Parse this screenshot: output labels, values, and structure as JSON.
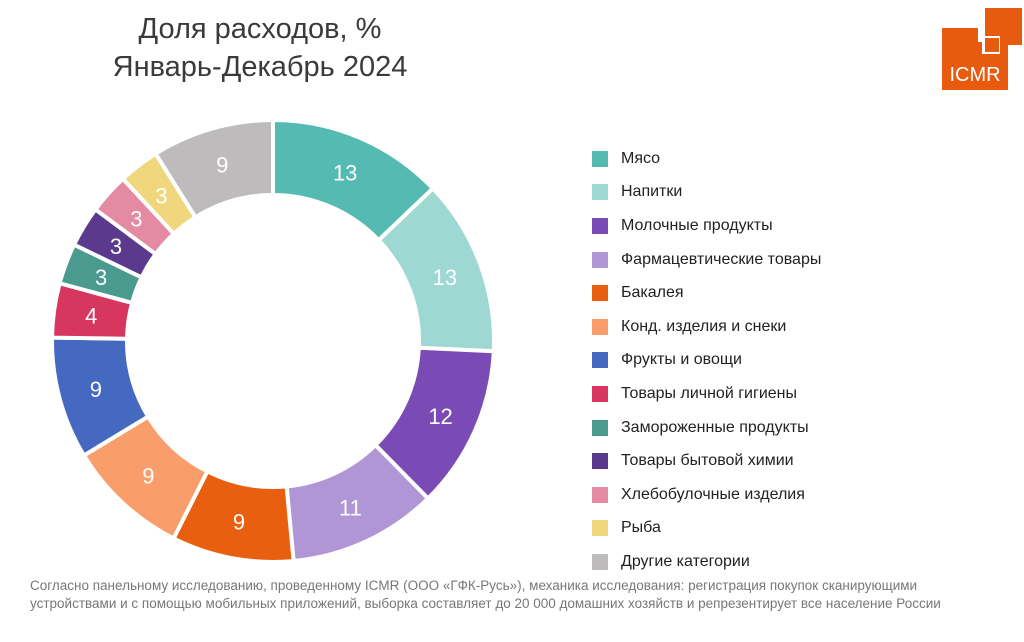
{
  "title_line1": "Доля расходов, %",
  "title_line2": "Январь-Декабрь 2024",
  "logo_text": "ICMR",
  "brand_color": "#E85A0E",
  "chart_data": {
    "type": "pie",
    "donut": true,
    "title": "Доля расходов, % Январь-Декабрь 2024",
    "legend_position": "right",
    "categories": [
      "Мясо",
      "Напитки",
      "Молочные продукты",
      "Фармацевтические товары",
      "Бакалея",
      "Конд. изделия и снеки",
      "Фрукты и овощи",
      "Товары личной гигиены",
      "Замороженные продукты",
      "Товары бытовой химии",
      "Хлебобулочные изделия",
      "Рыба",
      "Другие категории"
    ],
    "values": [
      13,
      13,
      12,
      11,
      9,
      9,
      9,
      4,
      3,
      3,
      3,
      3,
      9
    ],
    "colors": [
      "#55BBB2",
      "#9ED8D2",
      "#7B4BB5",
      "#B096D4",
      "#E8600F",
      "#F99D6B",
      "#4569C0",
      "#D7365F",
      "#4A9A8E",
      "#5B3A8E",
      "#E58AA3",
      "#F0D77E",
      "#BDBBBB"
    ]
  },
  "note": "Согласно панельному исследованию, проведенному ICMR (ООО «ГФК-Русь»), механика исследования: регистрация покупок сканирующими устройствами и с помощью мобильных приложений, выборка составляет до 20 000 домашних хозяйств и репрезентирует все население России"
}
